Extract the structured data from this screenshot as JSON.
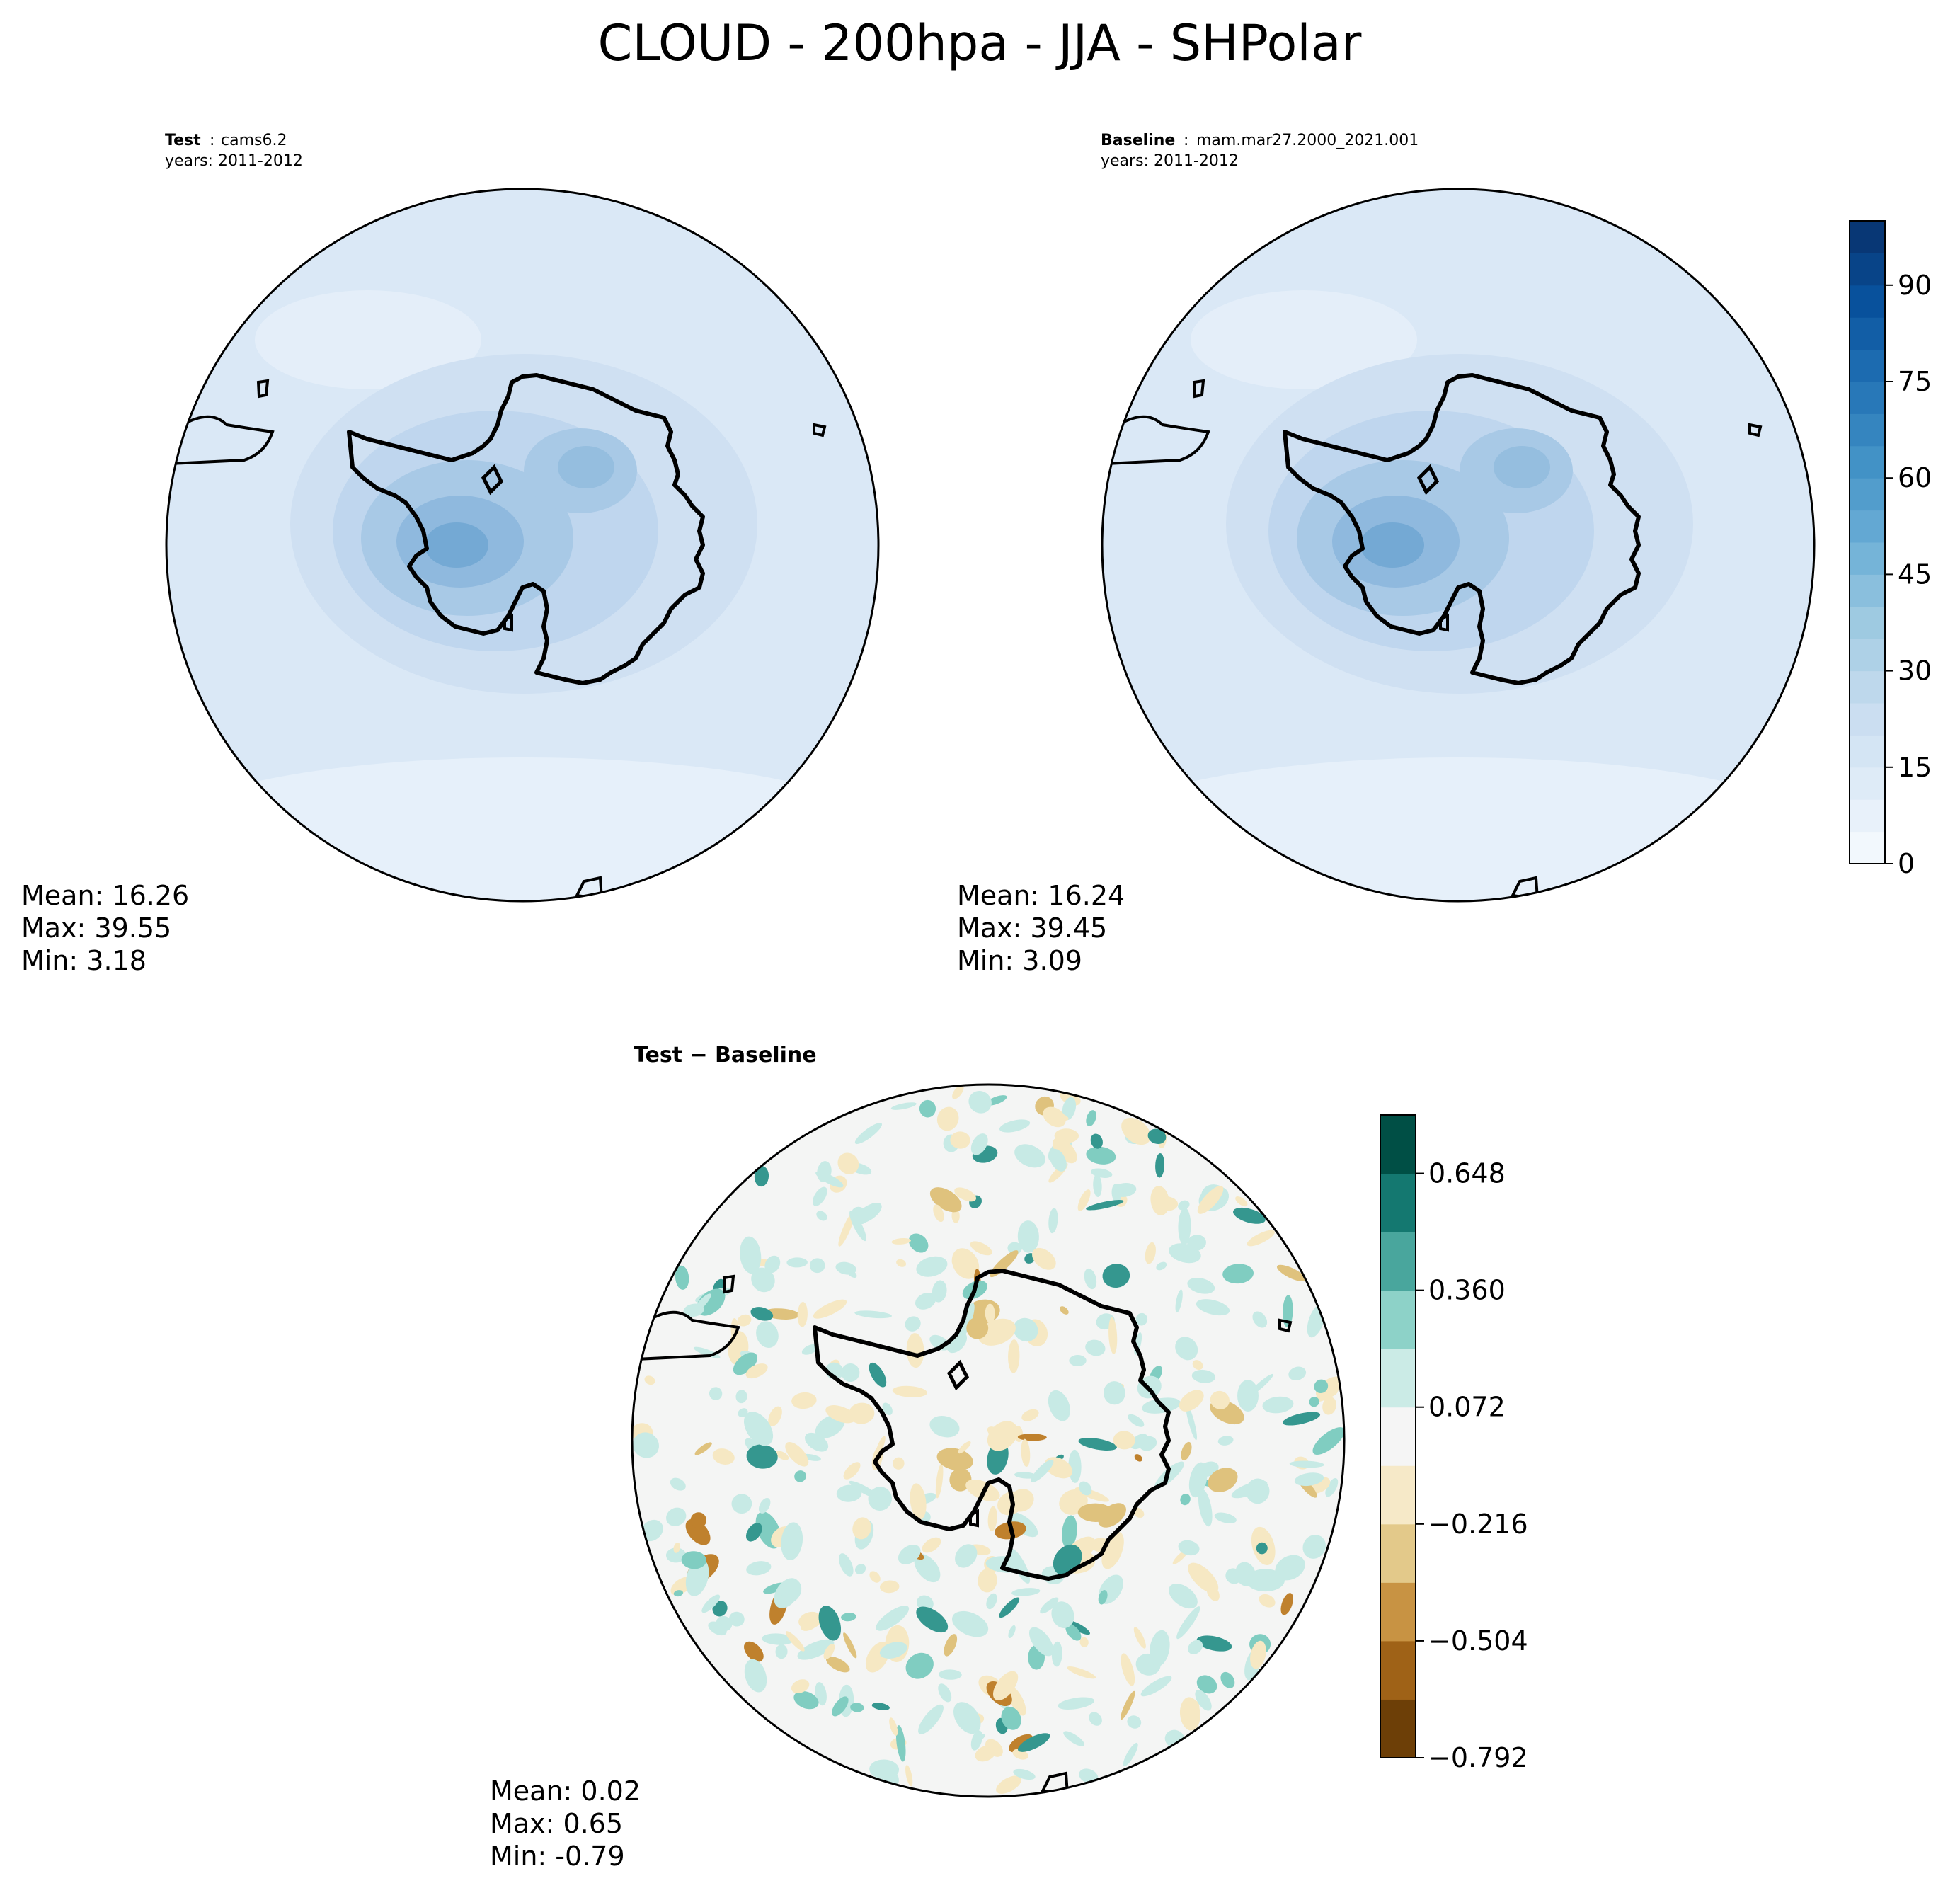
{
  "chart_data": {
    "type": "heatmap",
    "title": "CLOUD - 200hpa - JJA - SHPolar",
    "projection": "south-polar-stereographic",
    "panels": [
      {
        "name": "test",
        "label": "Test",
        "case": "cams6.2",
        "years": "years: 2011-2012",
        "stats": {
          "mean": "Mean: 16.26",
          "max": "Max: 39.55",
          "min": "Min:  3.18"
        },
        "values": {
          "mean": 16.26,
          "max": 39.55,
          "min": 3.18
        },
        "colormap": "Blues",
        "range": [
          0,
          100
        ]
      },
      {
        "name": "baseline",
        "label": "Baseline",
        "case": "mam.mar27.2000_2021.001",
        "years": "years: 2011-2012",
        "stats": {
          "mean": "Mean: 16.24",
          "max": "Max: 39.45",
          "min": "Min:  3.09"
        },
        "values": {
          "mean": 16.24,
          "max": 39.45,
          "min": 3.09
        },
        "colormap": "Blues",
        "range": [
          0,
          100
        ]
      },
      {
        "name": "difference",
        "label": "Test − Baseline",
        "stats": {
          "mean": "Mean:  0.02",
          "max": "Max:  0.65",
          "min": "Min: -0.79"
        },
        "values": {
          "mean": 0.02,
          "max": 0.65,
          "min": -0.79
        },
        "colormap": "BrBG",
        "range": [
          -0.792,
          0.792
        ]
      }
    ],
    "colorbars": [
      {
        "name": "absolute",
        "range": [
          0,
          100
        ],
        "levels": 20,
        "ticks": [
          0,
          15,
          30,
          45,
          60,
          75,
          90
        ],
        "tick_labels": [
          "0",
          "15",
          "30",
          "45",
          "60",
          "75",
          "90"
        ]
      },
      {
        "name": "difference",
        "range": [
          -0.792,
          0.792
        ],
        "levels": 11,
        "ticks": [
          -0.792,
          -0.504,
          -0.216,
          0.072,
          0.36,
          0.648
        ],
        "tick_labels": [
          "−0.792",
          "−0.504",
          "−0.216",
          "0.072",
          "0.360",
          "0.648"
        ]
      }
    ]
  }
}
